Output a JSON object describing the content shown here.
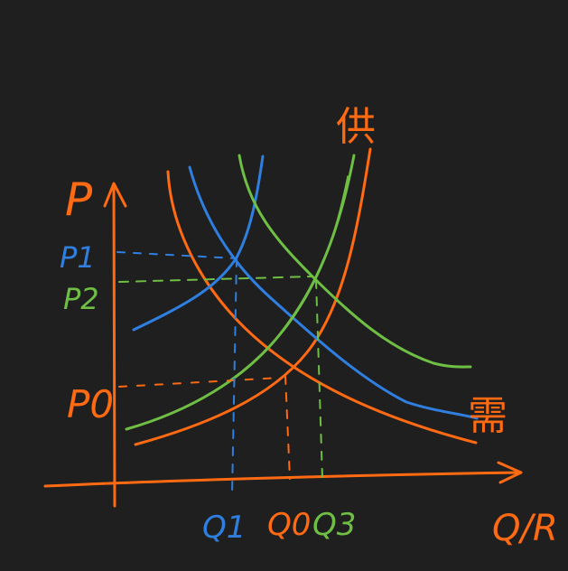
{
  "diagram": {
    "colors": {
      "background": "#1f1f1f",
      "orange": "#ff6a13",
      "blue": "#2f7fe0",
      "green": "#6fbf45"
    },
    "labels": {
      "y_axis": "P",
      "x_axis": "Q/R",
      "supply": "供",
      "demand": "需",
      "p1": "P1",
      "p2": "P2",
      "p0": "P0",
      "q1": "Q1",
      "q0": "Q0",
      "q3": "Q3"
    }
  }
}
